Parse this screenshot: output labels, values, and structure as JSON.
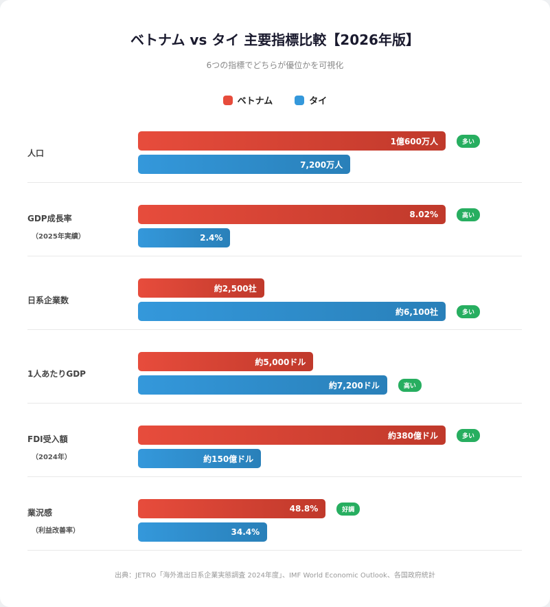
{
  "title": "ベトナム vs タイ 主要指標比較【2026年版】",
  "subtitle": "6つの指標でどちらが優位かを可視化",
  "colors": {
    "vietnam": "#e74c3c",
    "thailand": "#3498db",
    "badge": "#27ae60"
  },
  "legend": [
    {
      "name": "ベトナム",
      "color": "#e74c3c"
    },
    {
      "name": "タイ",
      "color": "#3498db"
    }
  ],
  "chart_data": {
    "type": "bar",
    "orientation": "horizontal",
    "series_names": [
      "ベトナム",
      "タイ"
    ],
    "rows": [
      {
        "label": "人口",
        "sub": "",
        "vietnam": {
          "text": "1億600万人",
          "fill": 100
        },
        "thailand": {
          "text": "7,200万人",
          "fill": 69
        },
        "badge": {
          "text": "多い",
          "on": "vietnam"
        }
      },
      {
        "label": "GDP成長率",
        "sub": "（2025年実績）",
        "vietnam": {
          "text": "8.02%",
          "fill": 100
        },
        "thailand": {
          "text": "2.4%",
          "fill": 30
        },
        "badge": {
          "text": "高い",
          "on": "vietnam"
        }
      },
      {
        "label": "日系企業数",
        "sub": "",
        "vietnam": {
          "text": "約2,500社",
          "fill": 41
        },
        "thailand": {
          "text": "約6,100社",
          "fill": 100
        },
        "badge": {
          "text": "多い",
          "on": "thailand"
        }
      },
      {
        "label": "1人あたりGDP",
        "sub": "",
        "vietnam": {
          "text": "約5,000ドル",
          "fill": 57
        },
        "thailand": {
          "text": "約7,200ドル",
          "fill": 81
        },
        "badge": {
          "text": "高い",
          "on": "thailand"
        }
      },
      {
        "label": "FDI受入額",
        "sub": "（2024年）",
        "vietnam": {
          "text": "約380億ドル",
          "fill": 100
        },
        "thailand": {
          "text": "約150億ドル",
          "fill": 40
        },
        "badge": {
          "text": "多い",
          "on": "vietnam"
        }
      },
      {
        "label": "業況感",
        "sub": "（利益改善率）",
        "vietnam": {
          "text": "48.8%",
          "fill": 61
        },
        "thailand": {
          "text": "34.4%",
          "fill": 42
        },
        "badge": {
          "text": "好調",
          "on": "vietnam"
        }
      }
    ]
  },
  "source": "出典：JETRO「海外進出日系企業実態調査 2024年度」、IMF World Economic Outlook、各国政府統計"
}
